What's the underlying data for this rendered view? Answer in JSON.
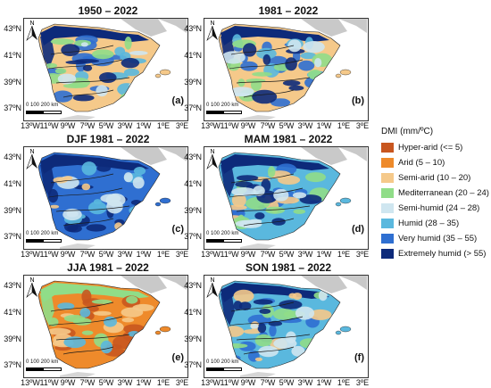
{
  "panels": [
    {
      "title": "1950 – 2022",
      "label": "(a)",
      "variant": "mixed"
    },
    {
      "title": "1981 – 2022",
      "label": "(b)",
      "variant": "mixed"
    },
    {
      "title": "DJF 1981 – 2022",
      "label": "(c)",
      "variant": "wet"
    },
    {
      "title": "MAM 1981 – 2022",
      "label": "(d)",
      "variant": "mixed-wet"
    },
    {
      "title": "JJA 1981 – 2022",
      "label": "(e)",
      "variant": "dry"
    },
    {
      "title": "SON 1981 – 2022",
      "label": "(f)",
      "variant": "mixed-wet"
    }
  ],
  "lat_ticks": [
    "43ºN",
    "41ºN",
    "39ºN",
    "37ºN"
  ],
  "lon_ticks": [
    "13ºW",
    "11ºW",
    "9ºW",
    "7ºW",
    "5ºW",
    "3ºW",
    "1ºW",
    "1ºE",
    "3ºE"
  ],
  "north_label": "N",
  "scale_label": "0   100 200 km",
  "legend": {
    "title": "DMI (mm/ºC)",
    "items": [
      {
        "label": "Hyper-arid (<= 5)",
        "color": "#c8561f"
      },
      {
        "label": "Arid (5 – 10)",
        "color": "#ee8a2b"
      },
      {
        "label": "Semi-arid (10 – 20)",
        "color": "#f5c98a"
      },
      {
        "label": "Mediterranean (20 – 24)",
        "color": "#90dd88"
      },
      {
        "label": "Semi-humid (24 – 28)",
        "color": "#cfe6f0"
      },
      {
        "label": "Humid (28 – 35)",
        "color": "#5ab8de"
      },
      {
        "label": "Very humid (35 – 55)",
        "color": "#2f6fd1"
      },
      {
        "label": "Extremely humid (> 55)",
        "color": "#0d2a7a"
      }
    ]
  }
}
